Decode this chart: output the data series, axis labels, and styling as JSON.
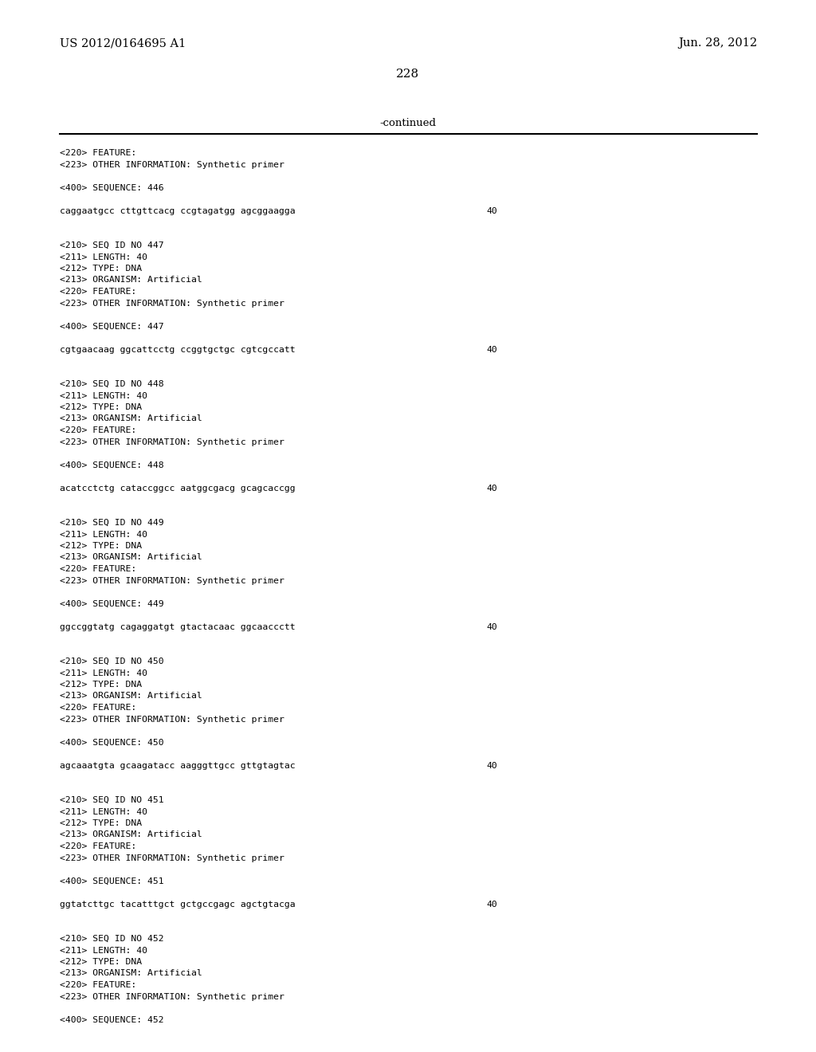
{
  "header_left": "US 2012/0164695 A1",
  "header_right": "Jun. 28, 2012",
  "page_number": "228",
  "continued_text": "-continued",
  "background_color": "#ffffff",
  "text_color": "#000000",
  "figwidth": 10.24,
  "figheight": 13.2,
  "dpi": 100,
  "content": [
    {
      "text": "<220> FEATURE:",
      "type": "meta"
    },
    {
      "text": "<223> OTHER INFORMATION: Synthetic primer",
      "type": "meta"
    },
    {
      "text": "",
      "type": "blank"
    },
    {
      "text": "<400> SEQUENCE: 446",
      "type": "meta"
    },
    {
      "text": "",
      "type": "blank"
    },
    {
      "text": "caggaatgcc cttgttcacg ccgtagatgg agcggaagga",
      "type": "seq",
      "num": "40"
    },
    {
      "text": "",
      "type": "blank"
    },
    {
      "text": "",
      "type": "blank"
    },
    {
      "text": "<210> SEQ ID NO 447",
      "type": "meta"
    },
    {
      "text": "<211> LENGTH: 40",
      "type": "meta"
    },
    {
      "text": "<212> TYPE: DNA",
      "type": "meta"
    },
    {
      "text": "<213> ORGANISM: Artificial",
      "type": "meta"
    },
    {
      "text": "<220> FEATURE:",
      "type": "meta"
    },
    {
      "text": "<223> OTHER INFORMATION: Synthetic primer",
      "type": "meta"
    },
    {
      "text": "",
      "type": "blank"
    },
    {
      "text": "<400> SEQUENCE: 447",
      "type": "meta"
    },
    {
      "text": "",
      "type": "blank"
    },
    {
      "text": "cgtgaacaag ggcattcctg ccggtgctgc cgtcgccatt",
      "type": "seq",
      "num": "40"
    },
    {
      "text": "",
      "type": "blank"
    },
    {
      "text": "",
      "type": "blank"
    },
    {
      "text": "<210> SEQ ID NO 448",
      "type": "meta"
    },
    {
      "text": "<211> LENGTH: 40",
      "type": "meta"
    },
    {
      "text": "<212> TYPE: DNA",
      "type": "meta"
    },
    {
      "text": "<213> ORGANISM: Artificial",
      "type": "meta"
    },
    {
      "text": "<220> FEATURE:",
      "type": "meta"
    },
    {
      "text": "<223> OTHER INFORMATION: Synthetic primer",
      "type": "meta"
    },
    {
      "text": "",
      "type": "blank"
    },
    {
      "text": "<400> SEQUENCE: 448",
      "type": "meta"
    },
    {
      "text": "",
      "type": "blank"
    },
    {
      "text": "acatcctctg cataccggcc aatggcgacg gcagcaccgg",
      "type": "seq",
      "num": "40"
    },
    {
      "text": "",
      "type": "blank"
    },
    {
      "text": "",
      "type": "blank"
    },
    {
      "text": "<210> SEQ ID NO 449",
      "type": "meta"
    },
    {
      "text": "<211> LENGTH: 40",
      "type": "meta"
    },
    {
      "text": "<212> TYPE: DNA",
      "type": "meta"
    },
    {
      "text": "<213> ORGANISM: Artificial",
      "type": "meta"
    },
    {
      "text": "<220> FEATURE:",
      "type": "meta"
    },
    {
      "text": "<223> OTHER INFORMATION: Synthetic primer",
      "type": "meta"
    },
    {
      "text": "",
      "type": "blank"
    },
    {
      "text": "<400> SEQUENCE: 449",
      "type": "meta"
    },
    {
      "text": "",
      "type": "blank"
    },
    {
      "text": "ggccggtatg cagaggatgt gtactacaac ggcaaccctt",
      "type": "seq",
      "num": "40"
    },
    {
      "text": "",
      "type": "blank"
    },
    {
      "text": "",
      "type": "blank"
    },
    {
      "text": "<210> SEQ ID NO 450",
      "type": "meta"
    },
    {
      "text": "<211> LENGTH: 40",
      "type": "meta"
    },
    {
      "text": "<212> TYPE: DNA",
      "type": "meta"
    },
    {
      "text": "<213> ORGANISM: Artificial",
      "type": "meta"
    },
    {
      "text": "<220> FEATURE:",
      "type": "meta"
    },
    {
      "text": "<223> OTHER INFORMATION: Synthetic primer",
      "type": "meta"
    },
    {
      "text": "",
      "type": "blank"
    },
    {
      "text": "<400> SEQUENCE: 450",
      "type": "meta"
    },
    {
      "text": "",
      "type": "blank"
    },
    {
      "text": "agcaaatgta gcaagatacc aagggttgcc gttgtagtac",
      "type": "seq",
      "num": "40"
    },
    {
      "text": "",
      "type": "blank"
    },
    {
      "text": "",
      "type": "blank"
    },
    {
      "text": "<210> SEQ ID NO 451",
      "type": "meta"
    },
    {
      "text": "<211> LENGTH: 40",
      "type": "meta"
    },
    {
      "text": "<212> TYPE: DNA",
      "type": "meta"
    },
    {
      "text": "<213> ORGANISM: Artificial",
      "type": "meta"
    },
    {
      "text": "<220> FEATURE:",
      "type": "meta"
    },
    {
      "text": "<223> OTHER INFORMATION: Synthetic primer",
      "type": "meta"
    },
    {
      "text": "",
      "type": "blank"
    },
    {
      "text": "<400> SEQUENCE: 451",
      "type": "meta"
    },
    {
      "text": "",
      "type": "blank"
    },
    {
      "text": "ggtatcttgc tacatttgct gctgccgagc agctgtacga",
      "type": "seq",
      "num": "40"
    },
    {
      "text": "",
      "type": "blank"
    },
    {
      "text": "",
      "type": "blank"
    },
    {
      "text": "<210> SEQ ID NO 452",
      "type": "meta"
    },
    {
      "text": "<211> LENGTH: 40",
      "type": "meta"
    },
    {
      "text": "<212> TYPE: DNA",
      "type": "meta"
    },
    {
      "text": "<213> ORGANISM: Artificial",
      "type": "meta"
    },
    {
      "text": "<220> FEATURE:",
      "type": "meta"
    },
    {
      "text": "<223> OTHER INFORMATION: Synthetic primer",
      "type": "meta"
    },
    {
      "text": "",
      "type": "blank"
    },
    {
      "text": "<400> SEQUENCE: 452",
      "type": "meta"
    }
  ]
}
